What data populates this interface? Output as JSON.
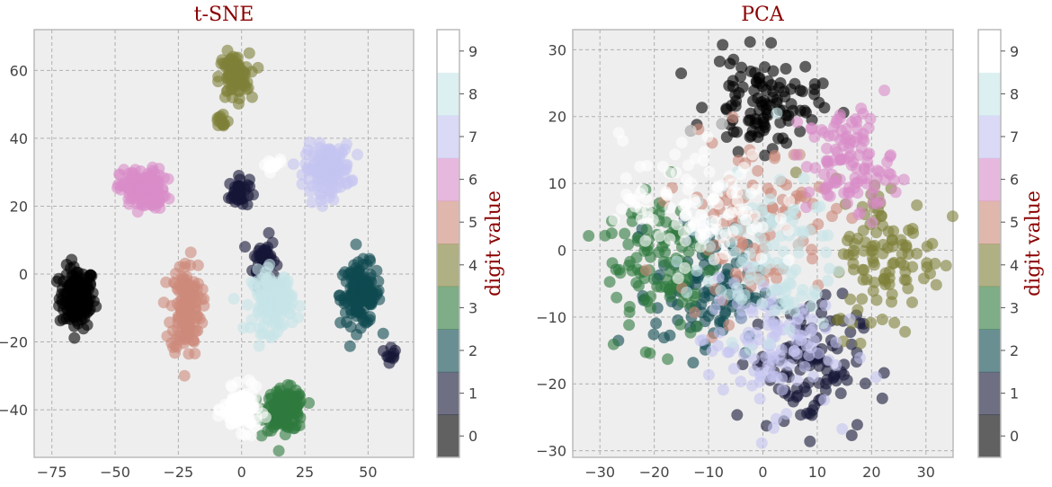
{
  "chart_data": [
    {
      "type": "scatter",
      "title": "t-SNE",
      "xlim": [
        -82,
        68
      ],
      "ylim": [
        -54,
        72
      ],
      "xticks": [
        -75,
        -50,
        -25,
        0,
        25,
        50
      ],
      "yticks": [
        -40,
        -20,
        0,
        20,
        40,
        60
      ],
      "grid": true,
      "series": [
        {
          "label": "0",
          "color": "#000000",
          "clusters": [
            {
              "x": -65,
              "y": -7,
              "sx": 3.5,
              "sy": 4.5,
              "n": 140
            }
          ]
        },
        {
          "label": "1",
          "color": "#161637",
          "clusters": [
            {
              "x": 9,
              "y": 4,
              "sx": 2.2,
              "sy": 3.5,
              "n": 60
            },
            {
              "x": -1,
              "y": 24,
              "sx": 2,
              "sy": 2.2,
              "n": 40
            },
            {
              "x": 59,
              "y": -23,
              "sx": 1,
              "sy": 1.5,
              "n": 10
            }
          ]
        },
        {
          "label": "2",
          "color": "#0f4a50",
          "clusters": [
            {
              "x": 47,
              "y": -6,
              "sx": 4,
              "sy": 4.5,
              "n": 140
            }
          ]
        },
        {
          "label": "3",
          "color": "#2e7a3e",
          "clusters": [
            {
              "x": 17,
              "y": -40,
              "sx": 4,
              "sy": 3,
              "n": 140
            }
          ]
        },
        {
          "label": "4",
          "color": "#7e8038",
          "clusters": [
            {
              "x": -3,
              "y": 58,
              "sx": 3,
              "sy": 3.5,
              "n": 90
            },
            {
              "x": -8,
              "y": 45,
              "sx": 1.5,
              "sy": 1.5,
              "n": 15
            }
          ]
        },
        {
          "label": "5",
          "color": "#cd8a7b",
          "clusters": [
            {
              "x": -22,
              "y": -10,
              "sx": 3,
              "sy": 7,
              "n": 140
            }
          ]
        },
        {
          "label": "6",
          "color": "#d88cc8",
          "clusters": [
            {
              "x": -39,
              "y": 25,
              "sx": 4.5,
              "sy": 3,
              "n": 140
            }
          ]
        },
        {
          "label": "7",
          "color": "#c4c4f2",
          "clusters": [
            {
              "x": 34,
              "y": 31,
              "sx": 4.5,
              "sy": 3.5,
              "n": 140
            }
          ]
        },
        {
          "label": "8",
          "color": "#c6e5e8",
          "clusters": [
            {
              "x": 12,
              "y": -8,
              "sx": 4,
              "sy": 4.5,
              "n": 140
            }
          ]
        },
        {
          "label": "9",
          "color": "#ffffff",
          "clusters": [
            {
              "x": 0,
              "y": -40,
              "sx": 3.5,
              "sy": 3,
              "n": 110
            },
            {
              "x": 12,
              "y": 32,
              "sx": 2,
              "sy": 1,
              "n": 15
            }
          ]
        }
      ]
    },
    {
      "type": "scatter",
      "title": "PCA",
      "xlim": [
        -35,
        35
      ],
      "ylim": [
        -31,
        33
      ],
      "xticks": [
        -30,
        -20,
        -10,
        0,
        10,
        20,
        30
      ],
      "yticks": [
        -30,
        -20,
        -10,
        0,
        10,
        20,
        30
      ],
      "grid": true,
      "series": [
        {
          "label": "0",
          "color": "#000000",
          "clusters": [
            {
              "x": 0,
              "y": 22,
              "sx": 5,
              "sy": 3.5,
              "n": 110
            }
          ]
        },
        {
          "label": "1",
          "color": "#161637",
          "clusters": [
            {
              "x": 8,
              "y": -17,
              "sx": 5,
              "sy": 5,
              "n": 110
            }
          ]
        },
        {
          "label": "2",
          "color": "#0f4a50",
          "clusters": [
            {
              "x": -10,
              "y": -6,
              "sx": 5,
              "sy": 5,
              "n": 110
            }
          ]
        },
        {
          "label": "3",
          "color": "#2e7a3e",
          "clusters": [
            {
              "x": -19,
              "y": -1,
              "sx": 5,
              "sy": 6,
              "n": 110
            }
          ]
        },
        {
          "label": "4",
          "color": "#7e8038",
          "clusters": [
            {
              "x": 23,
              "y": -1,
              "sx": 5,
              "sy": 6,
              "n": 110
            }
          ]
        },
        {
          "label": "5",
          "color": "#cd8a7b",
          "clusters": [
            {
              "x": -2,
              "y": 5,
              "sx": 7,
              "sy": 6,
              "n": 110
            }
          ]
        },
        {
          "label": "6",
          "color": "#d88cc8",
          "clusters": [
            {
              "x": 16,
              "y": 13,
              "sx": 4,
              "sy": 4,
              "n": 110
            }
          ]
        },
        {
          "label": "7",
          "color": "#c4c4f2",
          "clusters": [
            {
              "x": 1,
              "y": -14,
              "sx": 6,
              "sy": 5,
              "n": 110
            }
          ]
        },
        {
          "label": "8",
          "color": "#c6e5e8",
          "clusters": [
            {
              "x": 0,
              "y": -1,
              "sx": 7,
              "sy": 6,
              "n": 110
            }
          ]
        },
        {
          "label": "9",
          "color": "#ffffff",
          "clusters": [
            {
              "x": -12,
              "y": 7,
              "sx": 7,
              "sy": 5,
              "n": 110
            }
          ]
        }
      ]
    }
  ],
  "colorbar": {
    "label": "digit value",
    "ticks": [
      "0",
      "1",
      "2",
      "3",
      "4",
      "5",
      "6",
      "7",
      "8",
      "9"
    ],
    "colors": [
      "#000000",
      "#161637",
      "#0f4a50",
      "#2e7a3e",
      "#7e8038",
      "#cd8a7b",
      "#d88cc8",
      "#c4c4f2",
      "#c6e5e8",
      "#ffffff"
    ]
  }
}
